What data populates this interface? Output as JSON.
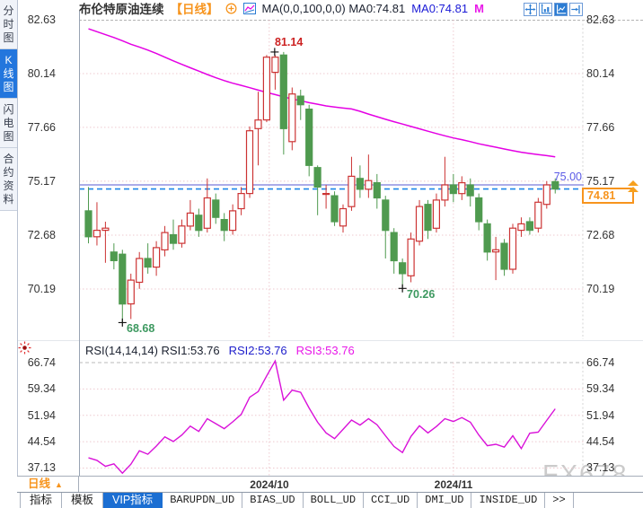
{
  "header": {
    "title": "布伦特原油连续",
    "period_tag": "【日线】",
    "legend_dark": "MA(0,0,100,0,0) MA0:74.81",
    "legend_blue": "MA0:74.81",
    "legend_magenta": "M",
    "toolbar_icons": [
      "pan-icon",
      "axis-zoom-icon",
      "axis-scale-icon",
      "jump-latest-icon"
    ]
  },
  "sidebar": {
    "items": [
      {
        "label": "分时图",
        "selected": false
      },
      {
        "label": "K线图",
        "selected": true
      },
      {
        "label": "闪电图",
        "selected": false
      },
      {
        "label": "合约资料",
        "selected": false
      }
    ]
  },
  "rsi_legend": {
    "dark": "RSI(14,14,14) RSI1:53.76",
    "blue": "RSI2:53.76",
    "magenta": "RSI3:53.76"
  },
  "xaxis": {
    "period_label": "日线",
    "period_arrow": "▲"
  },
  "tabs": {
    "items": [
      {
        "label": "指标",
        "selected": false,
        "mono": false
      },
      {
        "label": "模板",
        "selected": false,
        "mono": false
      },
      {
        "label": "VIP指标",
        "selected": true,
        "mono": false
      },
      {
        "label": "BARUPDN_UD",
        "selected": false,
        "mono": true
      },
      {
        "label": "BIAS_UD",
        "selected": false,
        "mono": true
      },
      {
        "label": "BOLL_UD",
        "selected": false,
        "mono": true
      },
      {
        "label": "CCI_UD",
        "selected": false,
        "mono": true
      },
      {
        "label": "DMI_UD",
        "selected": false,
        "mono": true
      },
      {
        "label": "INSIDE_UD",
        "selected": false,
        "mono": true
      },
      {
        "label": ">>",
        "selected": false,
        "mono": true
      }
    ]
  },
  "watermark": "FX678",
  "colors": {
    "up_candle": "#cc3333",
    "down_candle": "#4f9a4f",
    "ma_line": "#e400e4",
    "rsi_line": "#d911d9",
    "accent_blue": "#1b6ed2",
    "orange": "#f7941d",
    "hline_solid": "#7b7bd9",
    "hline_dashed": "#1d86e8",
    "grid_pink": "#eec9cf",
    "low_label_green": "#3d9960",
    "high_label_red": "#cc2222"
  },
  "chart_data": [
    {
      "type": "candlestick",
      "title": "布伦特原油连续 日线",
      "y_ticks": [
        82.63,
        80.14,
        77.66,
        75.17,
        72.68,
        70.19
      ],
      "y_tick_labels": [
        "82.63",
        "80.14",
        "77.66",
        "75.17",
        "72.68",
        "70.19"
      ],
      "x_ticks": [
        {
          "label": "2024/10",
          "candle_index": 21.3
        },
        {
          "label": "2024/11",
          "candle_index": 43.0
        }
      ],
      "hline_solid_value": 75.0,
      "hline_label": "75.00",
      "last_price": 74.81,
      "last_price_label": "74.81",
      "annotations": [
        {
          "text": "81.14",
          "price": 81.14,
          "candle": 23,
          "kind": "high"
        },
        {
          "text": "68.68",
          "price": 68.68,
          "candle": 4,
          "kind": "low"
        },
        {
          "text": "70.26",
          "price": 70.26,
          "candle": 37,
          "kind": "low"
        }
      ],
      "candles_ohlc": [
        [
          73.8,
          74.9,
          72.3,
          72.6
        ],
        [
          72.6,
          74.2,
          72.2,
          72.9
        ],
        [
          72.9,
          73.3,
          71.4,
          73.0
        ],
        [
          71.9,
          72.3,
          71.1,
          71.5
        ],
        [
          71.8,
          72.0,
          68.68,
          69.5
        ],
        [
          69.5,
          70.9,
          68.8,
          70.6
        ],
        [
          70.5,
          71.9,
          70.2,
          71.6
        ],
        [
          71.6,
          72.3,
          70.9,
          71.2
        ],
        [
          71.2,
          72.4,
          70.8,
          72.1
        ],
        [
          72.0,
          73.1,
          71.7,
          72.8
        ],
        [
          72.7,
          73.4,
          72.0,
          72.3
        ],
        [
          72.3,
          73.4,
          72.1,
          73.1
        ],
        [
          73.1,
          74.3,
          72.9,
          73.7
        ],
        [
          73.6,
          73.9,
          72.6,
          72.9
        ],
        [
          73.0,
          75.3,
          72.8,
          74.4
        ],
        [
          74.3,
          74.6,
          73.2,
          73.5
        ],
        [
          73.4,
          73.7,
          72.4,
          72.9
        ],
        [
          72.9,
          74.1,
          72.7,
          73.8
        ],
        [
          73.9,
          74.9,
          73.6,
          74.6
        ],
        [
          74.6,
          77.7,
          74.4,
          77.5
        ],
        [
          77.6,
          79.3,
          75.9,
          78.0
        ],
        [
          78.0,
          81.0,
          77.9,
          80.9
        ],
        [
          80.2,
          81.0,
          79.4,
          80.9
        ],
        [
          81.0,
          81.14,
          76.4,
          77.6
        ],
        [
          77.0,
          79.5,
          76.6,
          79.2
        ],
        [
          79.1,
          79.4,
          78.0,
          78.7
        ],
        [
          78.5,
          78.7,
          75.4,
          75.9
        ],
        [
          75.8,
          75.9,
          73.6,
          74.9
        ],
        [
          74.6,
          75.0,
          73.9,
          74.6
        ],
        [
          74.5,
          74.7,
          73.1,
          73.3
        ],
        [
          73.1,
          74.1,
          72.8,
          73.9
        ],
        [
          74.0,
          76.3,
          73.8,
          75.4
        ],
        [
          75.3,
          75.9,
          74.4,
          74.8
        ],
        [
          74.8,
          76.4,
          74.4,
          75.2
        ],
        [
          75.1,
          75.5,
          73.9,
          74.4
        ],
        [
          74.3,
          74.5,
          71.6,
          72.9
        ],
        [
          72.8,
          73.0,
          70.9,
          71.5
        ],
        [
          71.4,
          71.6,
          70.26,
          70.9
        ],
        [
          70.8,
          72.8,
          70.5,
          72.5
        ],
        [
          72.4,
          74.3,
          72.2,
          74.0
        ],
        [
          74.1,
          74.3,
          72.5,
          72.9
        ],
        [
          73.0,
          74.6,
          72.8,
          74.3
        ],
        [
          74.3,
          76.3,
          74.0,
          75.0
        ],
        [
          75.0,
          75.5,
          74.2,
          74.6
        ],
        [
          74.6,
          75.4,
          74.3,
          75.1
        ],
        [
          75.0,
          75.3,
          74.0,
          74.5
        ],
        [
          74.4,
          74.6,
          72.9,
          73.3
        ],
        [
          73.2,
          73.4,
          71.5,
          71.9
        ],
        [
          71.9,
          72.6,
          70.6,
          72.0
        ],
        [
          72.3,
          72.5,
          70.8,
          71.1
        ],
        [
          71.1,
          73.2,
          70.9,
          73.0
        ],
        [
          72.9,
          73.5,
          72.6,
          73.2
        ],
        [
          73.3,
          73.5,
          72.7,
          72.9
        ],
        [
          73.0,
          74.4,
          72.8,
          74.2
        ],
        [
          74.1,
          75.17,
          73.9,
          75.0
        ],
        [
          75.15,
          75.3,
          74.6,
          74.81
        ]
      ],
      "ma100": [
        82.21,
        82.08,
        81.94,
        81.81,
        81.66,
        81.5,
        81.37,
        81.23,
        81.07,
        80.9,
        80.73,
        80.57,
        80.41,
        80.26,
        80.1,
        79.95,
        79.82,
        79.7,
        79.6,
        79.49,
        79.38,
        79.27,
        79.17,
        79.07,
        78.97,
        78.89,
        78.8,
        78.73,
        78.65,
        78.6,
        78.55,
        78.51,
        78.4,
        78.27,
        78.15,
        78.03,
        77.92,
        77.81,
        77.7,
        77.59,
        77.48,
        77.37,
        77.27,
        77.17,
        77.09,
        77.0,
        76.9,
        76.82,
        76.74,
        76.66,
        76.58,
        76.51,
        76.45,
        76.4,
        76.35,
        76.3
      ]
    },
    {
      "type": "line",
      "name": "RSI",
      "y_ticks": [
        66.74,
        59.34,
        51.94,
        44.54,
        37.13
      ],
      "y_tick_labels": [
        "66.74",
        "59.34",
        "51.94",
        "44.54",
        "37.13"
      ],
      "values": [
        40.0,
        39.3,
        37.6,
        38.3,
        35.7,
        38.2,
        42.0,
        41.0,
        43.3,
        45.9,
        44.6,
        46.4,
        48.9,
        47.4,
        51.0,
        49.6,
        48.2,
        50.1,
        52.2,
        57.0,
        58.6,
        63.0,
        67.2,
        56.2,
        59.0,
        58.4,
        54.0,
        50.0,
        47.0,
        45.4,
        48.0,
        50.6,
        49.2,
        51.0,
        49.3,
        46.2,
        43.2,
        41.5,
        46.0,
        49.0,
        47.0,
        48.8,
        51.0,
        50.2,
        51.3,
        50.0,
        46.4,
        43.4,
        43.8,
        43.0,
        46.2,
        42.6,
        46.9,
        47.2,
        50.5,
        53.76
      ]
    }
  ]
}
